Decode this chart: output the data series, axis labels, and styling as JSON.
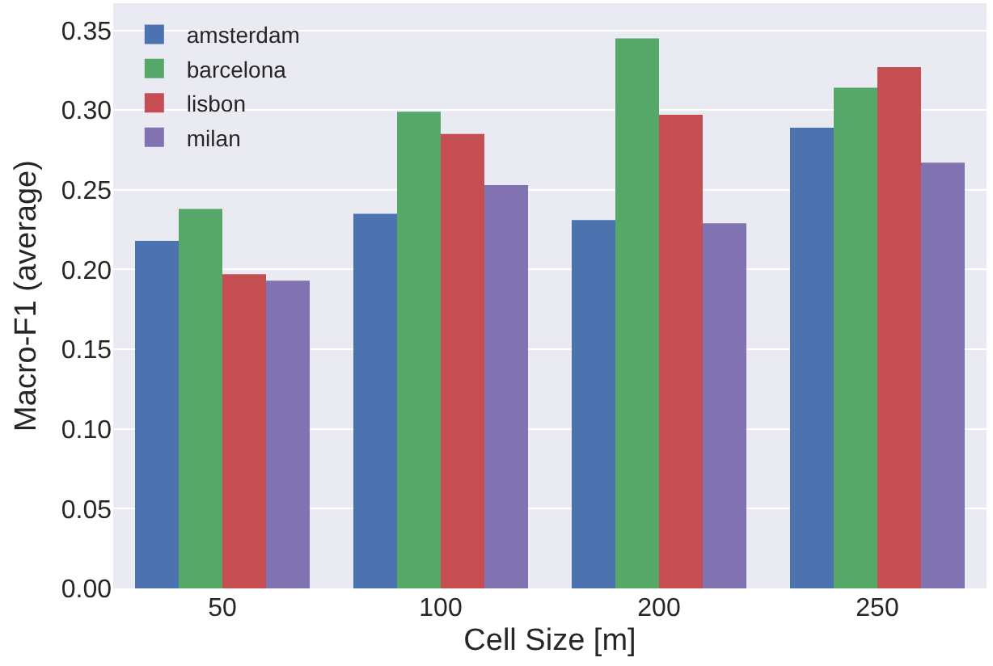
{
  "chart_data": {
    "type": "bar",
    "xlabel": "Cell Size [m]",
    "ylabel": "Macro-F1 (average)",
    "categories": [
      "50",
      "100",
      "200",
      "250"
    ],
    "series": [
      {
        "name": "amsterdam",
        "color": "#4c72b0",
        "values": [
          0.218,
          0.235,
          0.231,
          0.289
        ]
      },
      {
        "name": "barcelona",
        "color": "#55a868",
        "values": [
          0.238,
          0.299,
          0.345,
          0.314
        ]
      },
      {
        "name": "lisbon",
        "color": "#c44e52",
        "values": [
          0.197,
          0.285,
          0.297,
          0.327
        ]
      },
      {
        "name": "milan",
        "color": "#8172b2",
        "values": [
          0.193,
          0.253,
          0.229,
          0.267
        ]
      }
    ],
    "ylim": [
      0,
      0.367
    ],
    "yticks": [
      {
        "value": 0,
        "label": "0.00"
      },
      {
        "value": 0.05,
        "label": "0.05"
      },
      {
        "value": 0.1,
        "label": "0.10"
      },
      {
        "value": 0.15,
        "label": "0.15"
      },
      {
        "value": 0.2,
        "label": "0.20"
      },
      {
        "value": 0.25,
        "label": "0.25"
      },
      {
        "value": 0.3,
        "label": "0.30"
      },
      {
        "value": 0.35,
        "label": "0.35"
      }
    ],
    "grid": "y",
    "legend": "top left"
  }
}
